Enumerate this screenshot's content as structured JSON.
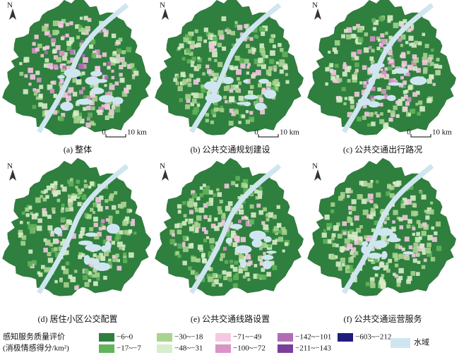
{
  "panels": [
    {
      "caption": "(a) 整体",
      "north": "N",
      "scale_start": "0",
      "scale_end": "10 km"
    },
    {
      "caption": "(b) 公共交通规划建设",
      "north": "N",
      "scale_start": "0",
      "scale_end": "10 km"
    },
    {
      "caption": "(c) 公共交通出行路况",
      "north": "N",
      "scale_start": "0",
      "scale_end": "10 km"
    },
    {
      "caption": "(d) 居住小区公交配置",
      "north": "N"
    },
    {
      "caption": "(e) 公共交通线路设置",
      "north": "N"
    },
    {
      "caption": "(f) 公共交通运营服务",
      "north": "N"
    }
  ],
  "legend": {
    "title": "感知服务质量评价",
    "subtitle": "(消极情感得分/km²)",
    "items": [
      {
        "label": "−6~0",
        "color": "#2f7f3f"
      },
      {
        "label": "−17~−7",
        "color": "#62b45a"
      },
      {
        "label": "−30~−18",
        "color": "#a9d490"
      },
      {
        "label": "−48~−31",
        "color": "#d8edc9"
      },
      {
        "label": "−71~−49",
        "color": "#f5c8e2"
      },
      {
        "label": "−100~−72",
        "color": "#d993c6"
      },
      {
        "label": "−142~−101",
        "color": "#b06db6"
      },
      {
        "label": "−211~−143",
        "color": "#7a3f9a"
      },
      {
        "label": "−603~−212",
        "color": "#1f1d7c"
      }
    ],
    "water": {
      "label": "水域",
      "color": "#cfe6f0"
    }
  }
}
